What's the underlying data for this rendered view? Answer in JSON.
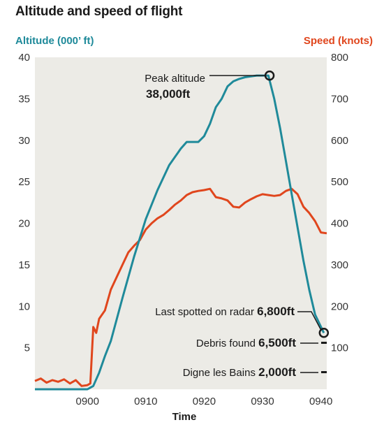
{
  "chart_data": {
    "type": "line",
    "title": "Altitude and speed of flight",
    "xlabel": "Time",
    "y_left_label": "Altitude (000’ ft)",
    "y_right_label": "Speed (knots)",
    "x_range": [
      891,
      941
    ],
    "y_left_range": [
      0,
      40
    ],
    "y_right_range": [
      0,
      800
    ],
    "x_ticks": [
      "0900",
      "0910",
      "0920",
      "0930",
      "0940"
    ],
    "x_tick_values": [
      900,
      910,
      920,
      930,
      940
    ],
    "y_left_ticks": [
      "5",
      "10",
      "15",
      "20",
      "25",
      "30",
      "35",
      "40"
    ],
    "y_left_tick_values": [
      5,
      10,
      15,
      20,
      25,
      30,
      35,
      40
    ],
    "y_right_ticks": [
      "100",
      "200",
      "300",
      "400",
      "500",
      "600",
      "700",
      "800"
    ],
    "y_right_tick_values": [
      100,
      200,
      300,
      400,
      500,
      600,
      700,
      800
    ],
    "series": [
      {
        "name": "Altitude (000’ ft)",
        "axis": "left",
        "color": "#1f8a9a",
        "x": [
          891,
          900,
          901,
          902,
          903,
          904,
          906,
          908,
          910,
          912,
          914,
          916,
          917,
          918,
          919,
          920,
          921,
          922,
          923,
          924,
          925,
          926,
          927,
          928,
          929,
          930,
          931,
          932,
          933,
          934,
          935,
          936,
          937,
          938,
          939,
          940.5
        ],
        "y": [
          0,
          0,
          0.4,
          2,
          4,
          5.8,
          11,
          16,
          20.5,
          24,
          27,
          29,
          29.8,
          29.8,
          29.8,
          30.5,
          32,
          34,
          35,
          36.5,
          37.1,
          37.4,
          37.6,
          37.7,
          37.8,
          37.8,
          37.8,
          35,
          31.5,
          27.5,
          23.5,
          19.5,
          15.5,
          12,
          9,
          6.8
        ]
      },
      {
        "name": "Speed (knots)",
        "axis": "right",
        "color": "#e0461d",
        "x": [
          891,
          892,
          893,
          894,
          895,
          896,
          897,
          898,
          899,
          900,
          900.5,
          901,
          901.5,
          902,
          903,
          904,
          905,
          906,
          907,
          908,
          909,
          910,
          911,
          912,
          913,
          914,
          915,
          916,
          917,
          918,
          919,
          920,
          921,
          922,
          923,
          924,
          925,
          926,
          927,
          928,
          929,
          930,
          931,
          932,
          933,
          934,
          935,
          936,
          937,
          938,
          939,
          940,
          941
        ],
        "y": [
          20,
          26,
          16,
          22,
          18,
          24,
          14,
          22,
          8,
          10,
          14,
          150,
          136,
          170,
          190,
          240,
          270,
          300,
          330,
          346,
          360,
          385,
          400,
          412,
          420,
          432,
          445,
          455,
          468,
          475,
          478,
          480,
          483,
          463,
          460,
          455,
          440,
          438,
          450,
          458,
          465,
          470,
          468,
          466,
          468,
          478,
          483,
          470,
          440,
          425,
          405,
          378,
          376
        ]
      }
    ],
    "points": [
      {
        "name": "Peak altitude",
        "x": 931.2,
        "y": 37.8,
        "axis": "left"
      },
      {
        "name": "Last spotted on radar",
        "x": 940.5,
        "y": 6.8,
        "axis": "left"
      }
    ],
    "annotations": [
      {
        "label": "Peak altitude",
        "value": "38,000ft"
      },
      {
        "label": "Last spotted on radar",
        "value": "6,800ft"
      },
      {
        "label": "Debris found",
        "value": "6,500ft"
      },
      {
        "label": "Digne les Bains",
        "value": "2,000ft"
      }
    ],
    "grid": false
  }
}
